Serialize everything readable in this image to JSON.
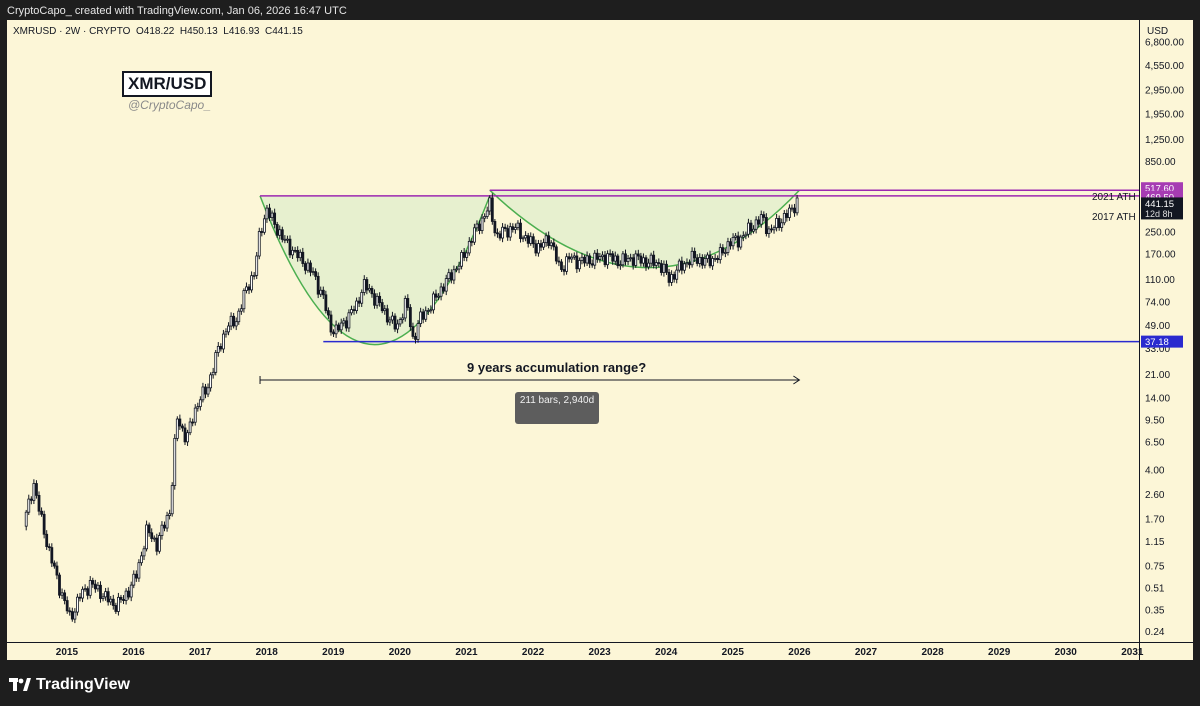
{
  "header": {
    "attribution": "CryptoCapo_ created with TradingView.com, Jan 06, 2026 16:47 UTC"
  },
  "symbol": {
    "name": "XMRUSD · 2W · CRYPTO",
    "open": "O418.22",
    "high": "H450.13",
    "low": "L416.93",
    "close": "C441.15",
    "currency": "USD"
  },
  "watermark": {
    "title": "XMR/USD",
    "handle": "@CryptoCapo_"
  },
  "annotations": {
    "range_text": "9 years accumulation range?",
    "measure_label": "211 bars, 2,940d",
    "ath_2021_label": "2021 ATH",
    "ath_2017_label": "2017 ATH"
  },
  "price_tags": {
    "ath_2021": "517.60",
    "ath_2017": "469.50",
    "last": "441.15",
    "countdown": "12d 8h",
    "support": "37.18"
  },
  "footer": {
    "brand": "TradingView"
  },
  "colors": {
    "background": "#fcf6d7",
    "candle_up": "#ffffff",
    "candle_down": "#131722",
    "resistance_line": "#9c27b0",
    "support_line": "#2a2acf",
    "cup_fill": "#e3efce",
    "cup_curve": "#4caf50"
  },
  "chart_data": {
    "type": "candlestick",
    "y_scale": "log",
    "ylim": [
      0.2,
      10000
    ],
    "xlim": [
      2014.1,
      2031.1
    ],
    "y_ticks": [
      6800,
      4550,
      2950,
      1950,
      1250,
      850,
      250,
      170,
      110,
      74,
      49,
      33,
      21,
      14,
      9.5,
      6.5,
      4,
      2.6,
      1.7,
      1.15,
      0.75,
      0.51,
      0.35,
      0.24
    ],
    "y_tick_labels": [
      "6,800.00",
      "4,550.00",
      "2,950.00",
      "1,950.00",
      "1,250.00",
      "850.00",
      "250.00",
      "170.00",
      "110.00",
      "74.00",
      "49.00",
      "33.00",
      "21.00",
      "14.00",
      "9.50",
      "6.50",
      "4.00",
      "2.60",
      "1.70",
      "1.15",
      "0.75",
      "0.51",
      "0.35",
      "0.24"
    ],
    "x_ticks": [
      2015,
      2016,
      2017,
      2018,
      2019,
      2020,
      2021,
      2022,
      2023,
      2024,
      2025,
      2026,
      2027,
      2028,
      2029,
      2030,
      2031
    ],
    "x_tick_labels": [
      "2015",
      "2016",
      "2017",
      "2018",
      "2019",
      "2020",
      "2021",
      "2022",
      "2023",
      "2024",
      "2025",
      "2026",
      "2027",
      "2028",
      "2029",
      "2030",
      "2031"
    ],
    "close_path": [
      [
        2014.35,
        1.5
      ],
      [
        2014.5,
        3.2
      ],
      [
        2014.6,
        1.8
      ],
      [
        2014.75,
        0.9
      ],
      [
        2014.9,
        0.5
      ],
      [
        2015.05,
        0.3
      ],
      [
        2015.2,
        0.45
      ],
      [
        2015.35,
        0.55
      ],
      [
        2015.5,
        0.48
      ],
      [
        2015.7,
        0.38
      ],
      [
        2015.85,
        0.42
      ],
      [
        2016.05,
        0.65
      ],
      [
        2016.2,
        1.4
      ],
      [
        2016.35,
        1.1
      ],
      [
        2016.55,
        2.0
      ],
      [
        2016.65,
        10.0
      ],
      [
        2016.8,
        6.8
      ],
      [
        2016.9,
        10.5
      ],
      [
        2017.0,
        14.0
      ],
      [
        2017.1,
        16.0
      ],
      [
        2017.25,
        30.0
      ],
      [
        2017.4,
        48.0
      ],
      [
        2017.55,
        55.0
      ],
      [
        2017.7,
        95.0
      ],
      [
        2017.82,
        125.0
      ],
      [
        2017.9,
        250.0
      ],
      [
        2018.0,
        370.0
      ],
      [
        2018.1,
        300.0
      ],
      [
        2018.25,
        220.0
      ],
      [
        2018.4,
        180.0
      ],
      [
        2018.55,
        150.0
      ],
      [
        2018.7,
        120.0
      ],
      [
        2018.85,
        80.0
      ],
      [
        2018.95,
        48.0
      ],
      [
        2019.05,
        45.0
      ],
      [
        2019.2,
        55.0
      ],
      [
        2019.35,
        70.0
      ],
      [
        2019.45,
        100.0
      ],
      [
        2019.55,
        90.0
      ],
      [
        2019.7,
        70.0
      ],
      [
        2019.85,
        55.0
      ],
      [
        2019.95,
        47.0
      ],
      [
        2020.1,
        75.0
      ],
      [
        2020.2,
        38.0
      ],
      [
        2020.3,
        55.0
      ],
      [
        2020.45,
        68.0
      ],
      [
        2020.6,
        90.0
      ],
      [
        2020.8,
        125.0
      ],
      [
        2020.95,
        160.0
      ],
      [
        2021.1,
        240.0
      ],
      [
        2021.25,
        320.0
      ],
      [
        2021.35,
        400.0
      ],
      [
        2021.45,
        230.0
      ],
      [
        2021.6,
        260.0
      ],
      [
        2021.75,
        270.0
      ],
      [
        2021.9,
        220.0
      ],
      [
        2022.1,
        190.0
      ],
      [
        2022.25,
        230.0
      ],
      [
        2022.4,
        130.0
      ],
      [
        2022.55,
        160.0
      ],
      [
        2022.7,
        150.0
      ],
      [
        2022.9,
        155.0
      ],
      [
        2023.1,
        165.0
      ],
      [
        2023.3,
        150.0
      ],
      [
        2023.5,
        160.0
      ],
      [
        2023.7,
        150.0
      ],
      [
        2023.9,
        145.0
      ],
      [
        2024.05,
        110.0
      ],
      [
        2024.2,
        135.0
      ],
      [
        2024.4,
        160.0
      ],
      [
        2024.6,
        150.0
      ],
      [
        2024.8,
        165.0
      ],
      [
        2024.95,
        210.0
      ],
      [
        2025.1,
        220.0
      ],
      [
        2025.3,
        280.0
      ],
      [
        2025.45,
        320.0
      ],
      [
        2025.55,
        250.0
      ],
      [
        2025.7,
        300.0
      ],
      [
        2025.85,
        350.0
      ],
      [
        2025.95,
        420.0
      ],
      [
        2026.0,
        441.15
      ]
    ],
    "level_2021_ath": 517.6,
    "level_2017_ath": 469.5,
    "level_support": 37.18,
    "measure_range": [
      2017.9,
      2026.0
    ],
    "measure_bars": 211,
    "measure_days": 2940
  }
}
